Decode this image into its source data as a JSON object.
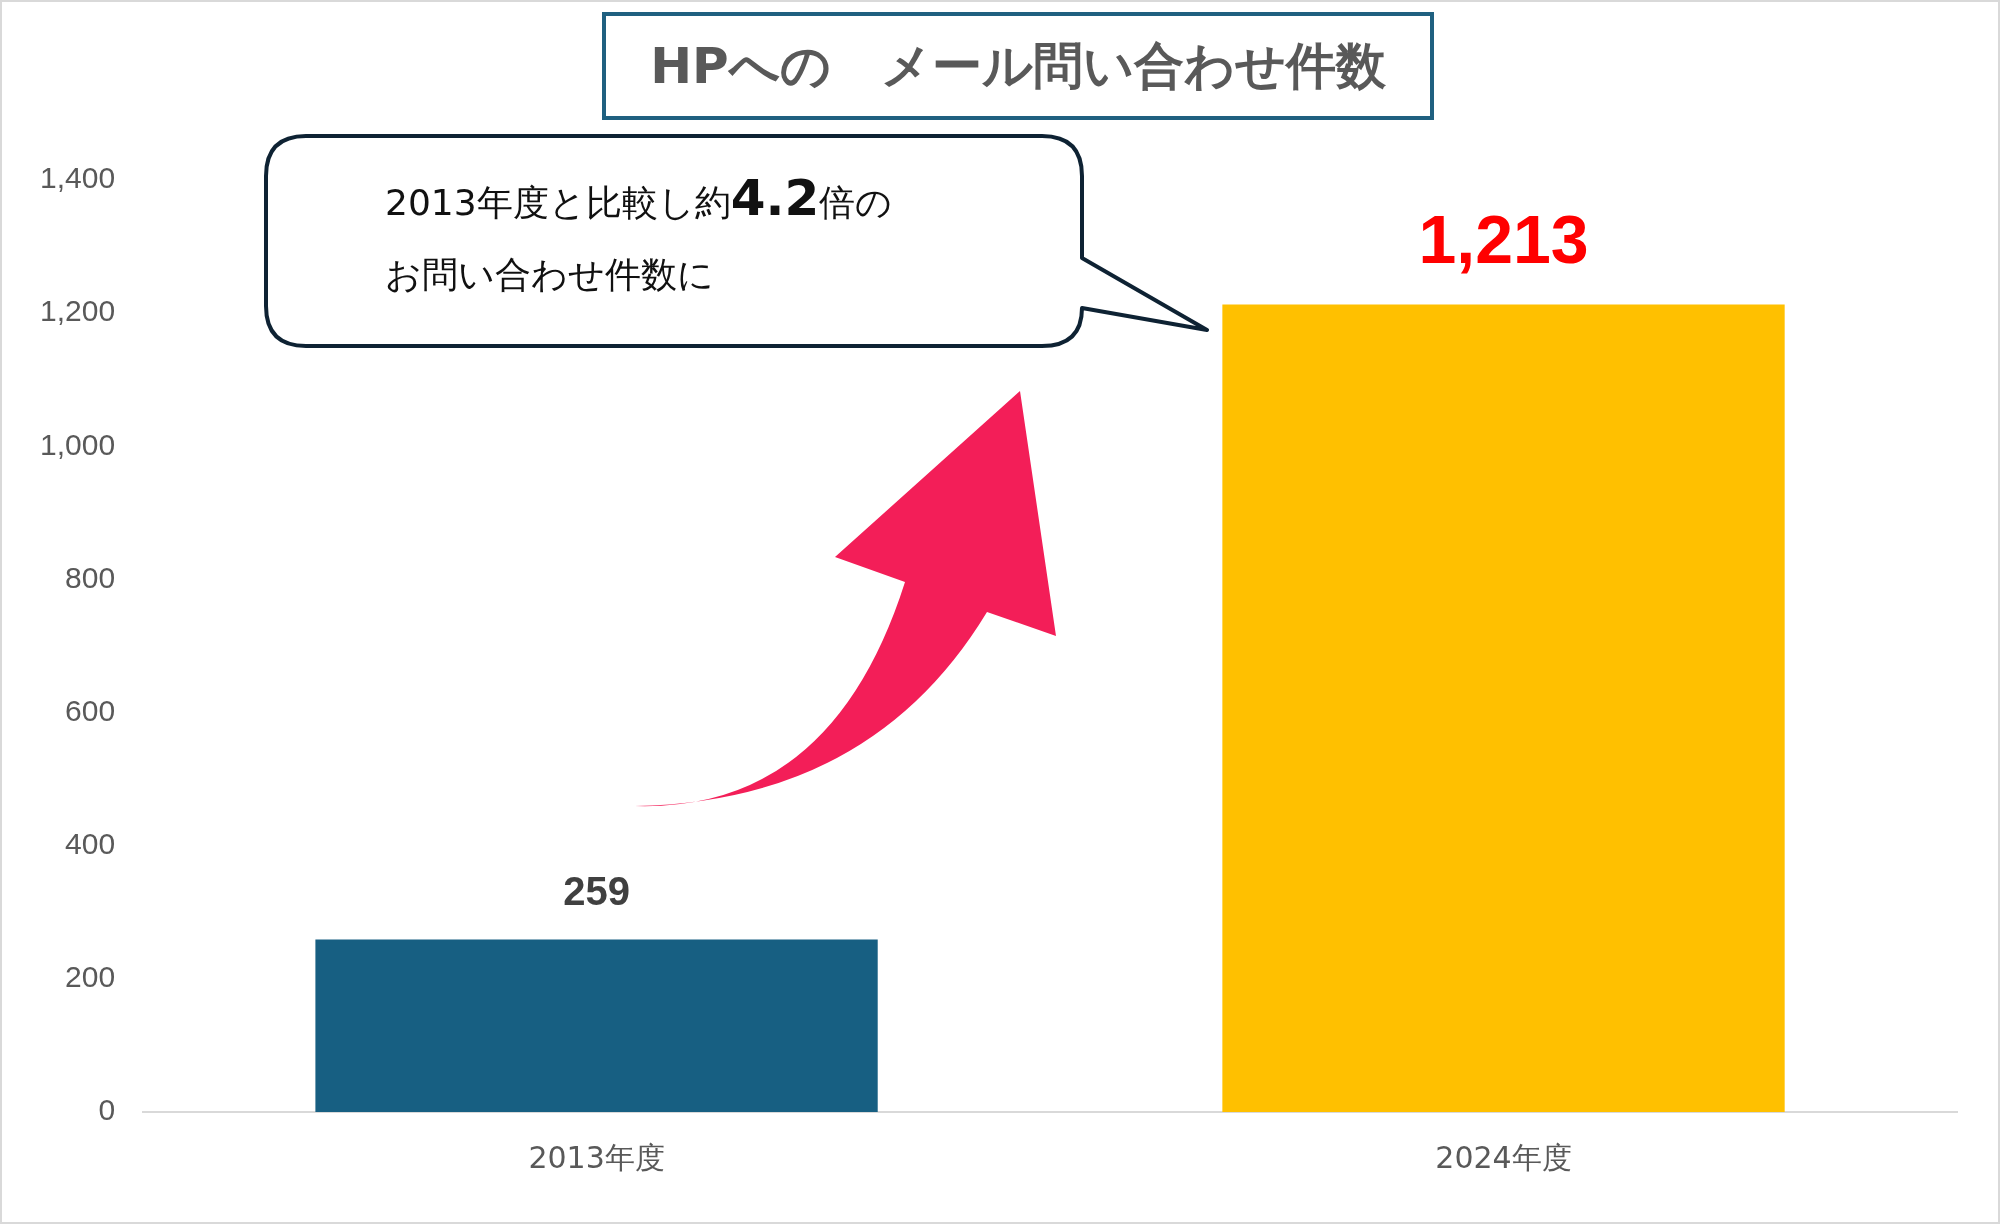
{
  "chart_data": {
    "type": "bar",
    "title": "HPへの　メール問い合わせ件数",
    "categories": [
      "2013年度",
      "2024年度"
    ],
    "values": [
      259,
      1213
    ],
    "colors": [
      "#175f82",
      "#ffc000"
    ],
    "value_labels": [
      "259",
      "1,213"
    ],
    "ylim": [
      0,
      1400
    ],
    "yticks": [
      0,
      {
        "value": 200,
        "label": "200"
      },
      {
        "value": 400,
        "label": "400"
      },
      {
        "value": 600,
        "label": "600"
      },
      {
        "value": 800,
        "label": "800"
      },
      {
        "value": 1000,
        "label": "1,000"
      },
      {
        "value": 1200,
        "label": "1,200"
      },
      {
        "value": 1400,
        "label": "1,400"
      }
    ],
    "annotations": [
      "2013年度と比較し約4.2倍の",
      "お問い合わせ件数に"
    ]
  }
}
